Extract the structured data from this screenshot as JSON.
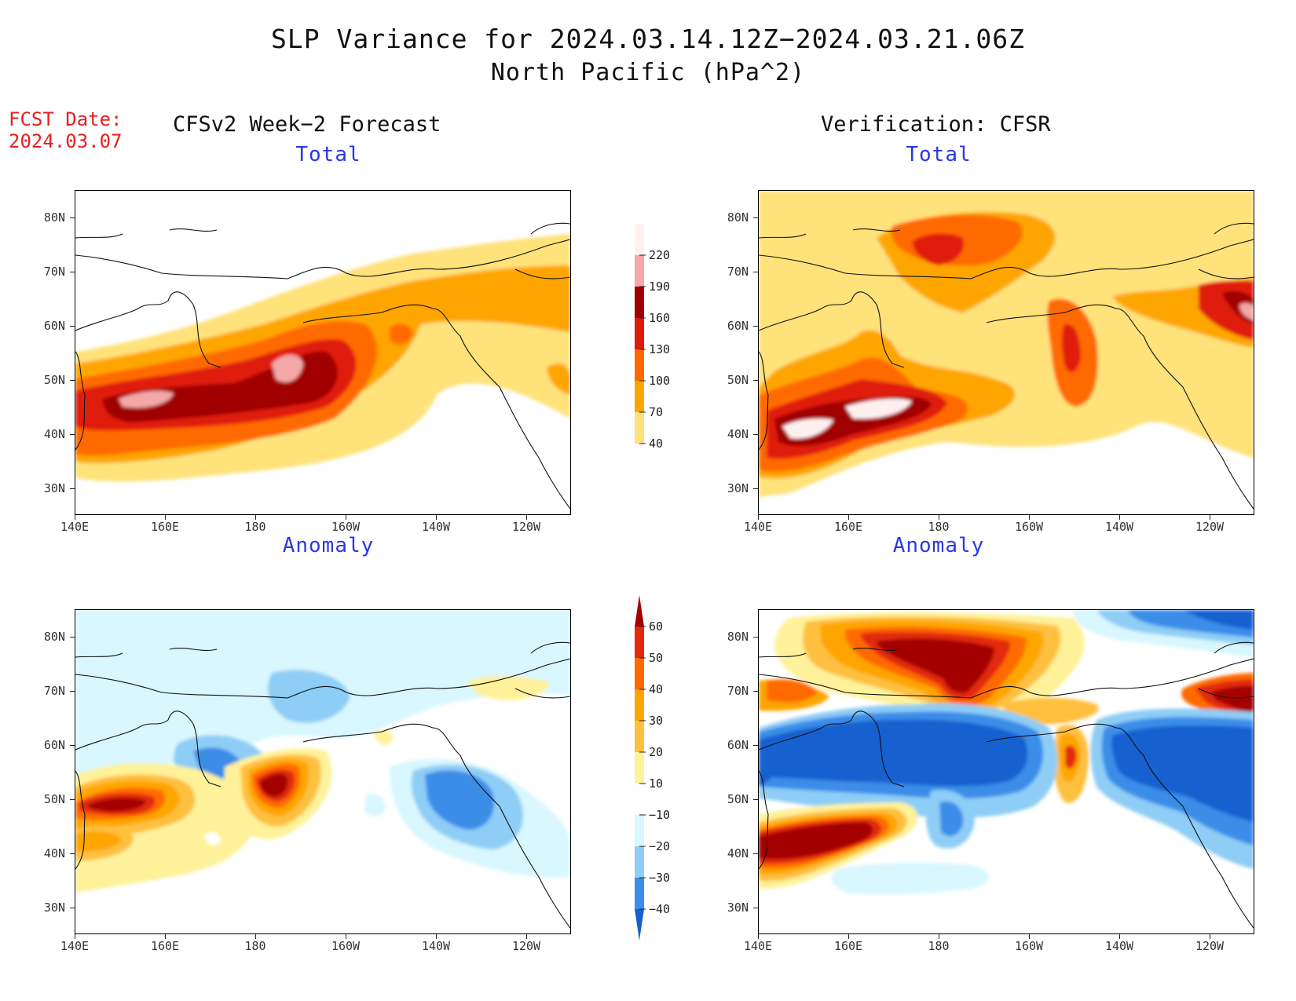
{
  "title": "SLP Variance for 2024.03.14.12Z−2024.03.21.06Z",
  "subtitle": "North Pacific (hPa^2)",
  "fcst_date_label": "FCST Date:",
  "fcst_date": "2024.03.07",
  "columns": {
    "left": "CFSv2 Week−2 Forecast",
    "right": "Verification: CFSR"
  },
  "panels": [
    {
      "id": "fcst-total",
      "subtitle": "Total"
    },
    {
      "id": "cfsr-total",
      "subtitle": "Total"
    },
    {
      "id": "fcst-anomaly",
      "subtitle": "Anomaly"
    },
    {
      "id": "cfsr-anomaly",
      "subtitle": "Anomaly"
    }
  ],
  "lat_labels": [
    "80N",
    "70N",
    "60N",
    "50N",
    "40N",
    "30N"
  ],
  "lon_labels": [
    "140E",
    "160E",
    "180",
    "160W",
    "140W",
    "120W"
  ],
  "total_colorbar": {
    "levels": [
      "220",
      "190",
      "160",
      "130",
      "100",
      "70",
      "40"
    ],
    "colors": [
      "#fff0f0",
      "#f4a8a8",
      "#a00000",
      "#e01a0a",
      "#ff6a00",
      "#ffa500",
      "#ffe27a"
    ]
  },
  "anomaly_colorbar": {
    "levels": [
      "60",
      "50",
      "40",
      "30",
      "20",
      "10",
      "−10",
      "−20",
      "−30",
      "−40"
    ],
    "colors": [
      "#a50000",
      "#e22a0a",
      "#ff6a00",
      "#ffa500",
      "#ffc040",
      "#fff29a",
      "#ffffff",
      "#d9f7ff",
      "#8ecdf5",
      "#3a8de8",
      "#1460d0"
    ]
  }
}
